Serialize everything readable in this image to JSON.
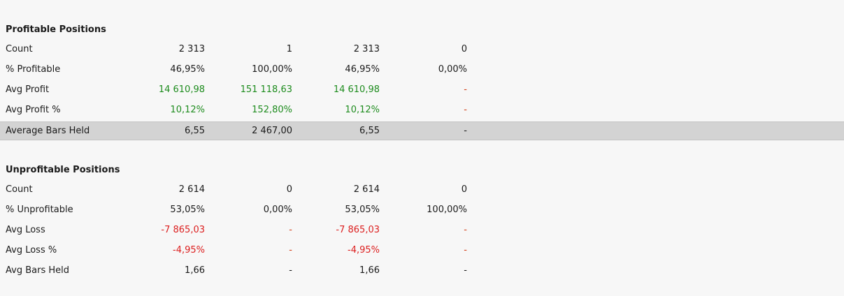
{
  "profitable": {
    "title": "Profitable Positions",
    "rows": [
      {
        "label": "Count",
        "values": [
          "2 313",
          "1",
          "2 313",
          "0"
        ],
        "tones": [
          "plain",
          "plain",
          "plain",
          "plain"
        ]
      },
      {
        "label": "% Profitable",
        "values": [
          "46,95%",
          "100,00%",
          "46,95%",
          "0,00%"
        ],
        "tones": [
          "plain",
          "plain",
          "plain",
          "plain"
        ]
      },
      {
        "label": "Avg Profit",
        "values": [
          "14 610,98",
          "151 118,63",
          "14 610,98",
          "-"
        ],
        "tones": [
          "pos",
          "pos",
          "pos",
          "dash-red"
        ]
      },
      {
        "label": "Avg Profit %",
        "values": [
          "10,12%",
          "152,80%",
          "10,12%",
          "-"
        ],
        "tones": [
          "pos",
          "pos",
          "pos",
          "dash-red"
        ]
      },
      {
        "label": "Average Bars Held",
        "values": [
          "6,55",
          "2 467,00",
          "6,55",
          "-"
        ],
        "tones": [
          "plain",
          "plain",
          "plain",
          "plain"
        ],
        "highlighted": true
      }
    ]
  },
  "unprofitable": {
    "title": "Unprofitable Positions",
    "rows": [
      {
        "label": "Count",
        "values": [
          "2 614",
          "0",
          "2 614",
          "0"
        ],
        "tones": [
          "plain",
          "plain",
          "plain",
          "plain"
        ]
      },
      {
        "label": "% Unprofitable",
        "values": [
          "53,05%",
          "0,00%",
          "53,05%",
          "100,00%"
        ],
        "tones": [
          "plain",
          "plain",
          "plain",
          "plain"
        ]
      },
      {
        "label": "Avg Loss",
        "values": [
          "-7 865,03",
          "-",
          "-7 865,03",
          "-"
        ],
        "tones": [
          "neg",
          "dash-red",
          "neg",
          "dash-red"
        ]
      },
      {
        "label": "Avg Loss %",
        "values": [
          "-4,95%",
          "-",
          "-4,95%",
          "-"
        ],
        "tones": [
          "neg",
          "dash-red",
          "neg",
          "dash-red"
        ]
      },
      {
        "label": "Avg Bars Held",
        "values": [
          "1,66",
          "-",
          "1,66",
          "-"
        ],
        "tones": [
          "plain",
          "plain",
          "plain",
          "plain"
        ]
      }
    ]
  },
  "colors": {
    "positive": "#1e8c1e",
    "negative": "#dc1e1e",
    "highlight_row": "#d3d3d3",
    "background": "#f7f7f7"
  }
}
